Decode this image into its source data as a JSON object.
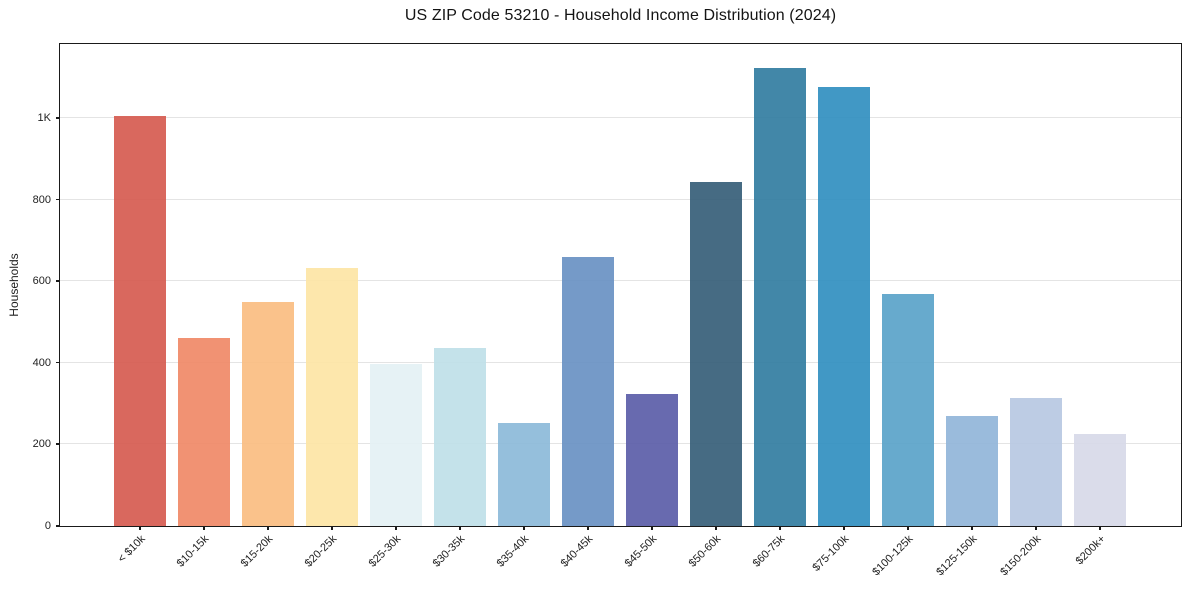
{
  "chart_data": {
    "type": "bar",
    "title": "US ZIP Code 53210 - Household Income Distribution (2024)",
    "xlabel": "",
    "ylabel": "Households",
    "categories": [
      "< $10k",
      "$10-15k",
      "$15-20k",
      "$20-25k",
      "$25-30k",
      "$30-35k",
      "$35-40k",
      "$40-45k",
      "$45-50k",
      "$50-60k",
      "$60-75k",
      "$75-100k",
      "$100-125k",
      "$125-150k",
      "$150-200k",
      "$200k+"
    ],
    "values": [
      1005,
      462,
      550,
      633,
      397,
      436,
      253,
      660,
      325,
      845,
      1124,
      1078,
      570,
      271,
      313,
      226
    ],
    "bar_colors": [
      "#d65c52",
      "#f08a68",
      "#fabd82",
      "#fde5a6",
      "#e4f1f4",
      "#bfe0e8",
      "#8dbad9",
      "#6b92c4",
      "#5c5fa9",
      "#38607a",
      "#347ea1",
      "#3390c1",
      "#5ba4c9",
      "#92b6d9",
      "#b8c8e2",
      "#d7d9e8"
    ],
    "yticks": {
      "values": [
        0,
        200,
        400,
        600,
        800,
        1000
      ],
      "labels": [
        "0",
        "200",
        "400",
        "600",
        "800",
        "1K"
      ]
    },
    "ylim": [
      0,
      1180
    ],
    "grid": "horizontal",
    "grid_color": "#e4e4e4",
    "spine_color": "#1a1a1a",
    "background": "#ffffff",
    "bar_width_fraction": 0.8,
    "legend": "none"
  }
}
